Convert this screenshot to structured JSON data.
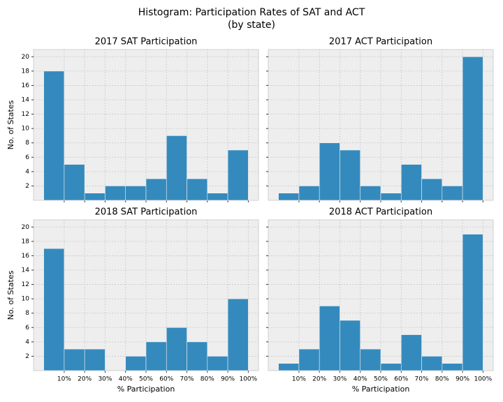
{
  "title": "Histogram: Participation Rates of SAT and ACT",
  "subtitle": "(by state)",
  "chart_data": [
    {
      "type": "histogram",
      "title": "2017 SAT Participation",
      "ylabel": "No. of States",
      "bins": [
        0,
        10,
        20,
        30,
        40,
        50,
        60,
        70,
        80,
        90,
        100
      ],
      "values": [
        18,
        5,
        1,
        2,
        2,
        3,
        9,
        3,
        1,
        7
      ],
      "color": "#348abd",
      "xlim": [
        -5,
        105
      ],
      "ylim": [
        0,
        21
      ],
      "yticks": [
        2,
        4,
        6,
        8,
        10,
        12,
        14,
        16,
        18,
        20
      ],
      "grid": true
    },
    {
      "type": "histogram",
      "title": "2017 ACT Participation",
      "bins": [
        0,
        10,
        20,
        30,
        40,
        50,
        60,
        70,
        80,
        90,
        100
      ],
      "values": [
        1,
        2,
        8,
        7,
        2,
        1,
        5,
        3,
        2,
        20
      ],
      "color": "#348abd",
      "xlim": [
        -5,
        105
      ],
      "ylim": [
        0,
        21
      ],
      "grid": true
    },
    {
      "type": "histogram",
      "title": "2018 SAT Participation",
      "ylabel": "No. of States",
      "xlabel": "% Participation",
      "bins": [
        0,
        10,
        20,
        30,
        40,
        50,
        60,
        70,
        80,
        90,
        100
      ],
      "values": [
        17,
        3,
        3,
        0,
        2,
        4,
        6,
        4,
        2,
        10
      ],
      "color": "#348abd",
      "xlim": [
        -5,
        105
      ],
      "ylim": [
        0,
        21
      ],
      "xticks": [
        {
          "value": 10,
          "label": "10%"
        },
        {
          "value": 20,
          "label": "20%"
        },
        {
          "value": 30,
          "label": "30%"
        },
        {
          "value": 40,
          "label": "40%"
        },
        {
          "value": 50,
          "label": "50%"
        },
        {
          "value": 60,
          "label": "60%"
        },
        {
          "value": 70,
          "label": "70%"
        },
        {
          "value": 80,
          "label": "80%"
        },
        {
          "value": 90,
          "label": "90%"
        },
        {
          "value": 100,
          "label": "100%"
        }
      ],
      "yticks": [
        2,
        4,
        6,
        8,
        10,
        12,
        14,
        16,
        18,
        20
      ],
      "grid": true
    },
    {
      "type": "histogram",
      "title": "2018 ACT Participation",
      "xlabel": "% Participation",
      "bins": [
        0,
        10,
        20,
        30,
        40,
        50,
        60,
        70,
        80,
        90,
        100
      ],
      "values": [
        1,
        3,
        9,
        7,
        3,
        1,
        5,
        2,
        1,
        19
      ],
      "color": "#348abd",
      "xlim": [
        -5,
        105
      ],
      "ylim": [
        0,
        21
      ],
      "xticks": [
        {
          "value": 10,
          "label": "10%"
        },
        {
          "value": 20,
          "label": "20%"
        },
        {
          "value": 30,
          "label": "30%"
        },
        {
          "value": 40,
          "label": "40%"
        },
        {
          "value": 50,
          "label": "50%"
        },
        {
          "value": 60,
          "label": "60%"
        },
        {
          "value": 70,
          "label": "70%"
        },
        {
          "value": 80,
          "label": "80%"
        },
        {
          "value": 90,
          "label": "90%"
        },
        {
          "value": 100,
          "label": "100%"
        }
      ],
      "grid": true
    }
  ]
}
